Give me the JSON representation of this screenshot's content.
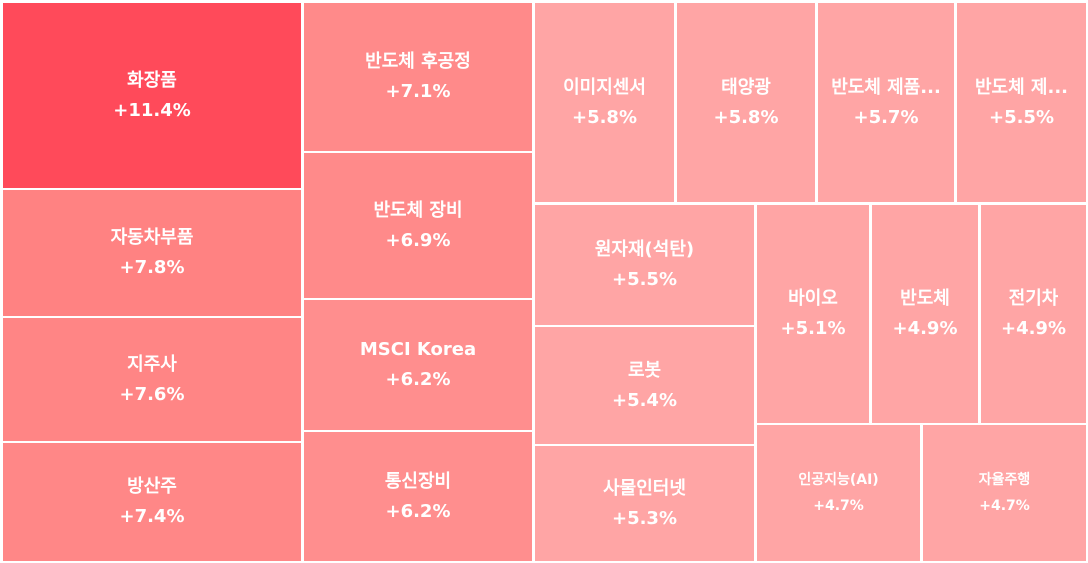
{
  "chart_data": {
    "type": "treemap",
    "items": [
      {
        "name": "화장품",
        "value": "+11.4%",
        "color": "#ff4a5a"
      },
      {
        "name": "자동차부품",
        "value": "+7.8%",
        "color": "#ff8282"
      },
      {
        "name": "지주사",
        "value": "+7.6%",
        "color": "#ff8585"
      },
      {
        "name": "방산주",
        "value": "+7.4%",
        "color": "#ff8787"
      },
      {
        "name": "반도체 후공정",
        "value": "+7.1%",
        "color": "#ff8a8a"
      },
      {
        "name": "반도체 장비",
        "value": "+6.9%",
        "color": "#ff8a8a"
      },
      {
        "name": "MSCI Korea",
        "value": "+6.2%",
        "color": "#ff8e8e"
      },
      {
        "name": "통신장비",
        "value": "+6.2%",
        "color": "#ff8e8e"
      },
      {
        "name": "이미지센서",
        "value": "+5.8%",
        "color": "#ffa5a5"
      },
      {
        "name": "태양광",
        "value": "+5.8%",
        "color": "#ffa5a5"
      },
      {
        "name": "반도체 제품...",
        "value": "+5.7%",
        "color": "#ffa5a5"
      },
      {
        "name": "반도체 제...",
        "value": "+5.5%",
        "color": "#ffa5a5"
      },
      {
        "name": "원자재(석탄)",
        "value": "+5.5%",
        "color": "#ffa5a5"
      },
      {
        "name": "로봇",
        "value": "+5.4%",
        "color": "#ffa5a5"
      },
      {
        "name": "사물인터넷",
        "value": "+5.3%",
        "color": "#ffa5a5"
      },
      {
        "name": "바이오",
        "value": "+5.1%",
        "color": "#ffa5a5"
      },
      {
        "name": "반도체",
        "value": "+4.9%",
        "color": "#ffa5a5"
      },
      {
        "name": "전기차",
        "value": "+4.9%",
        "color": "#ffa5a5"
      },
      {
        "name": "인공지능(AI)",
        "value": "+4.7%",
        "color": "#ffa5a5"
      },
      {
        "name": "자율주행",
        "value": "+4.7%",
        "color": "#ffa5a5"
      }
    ]
  }
}
